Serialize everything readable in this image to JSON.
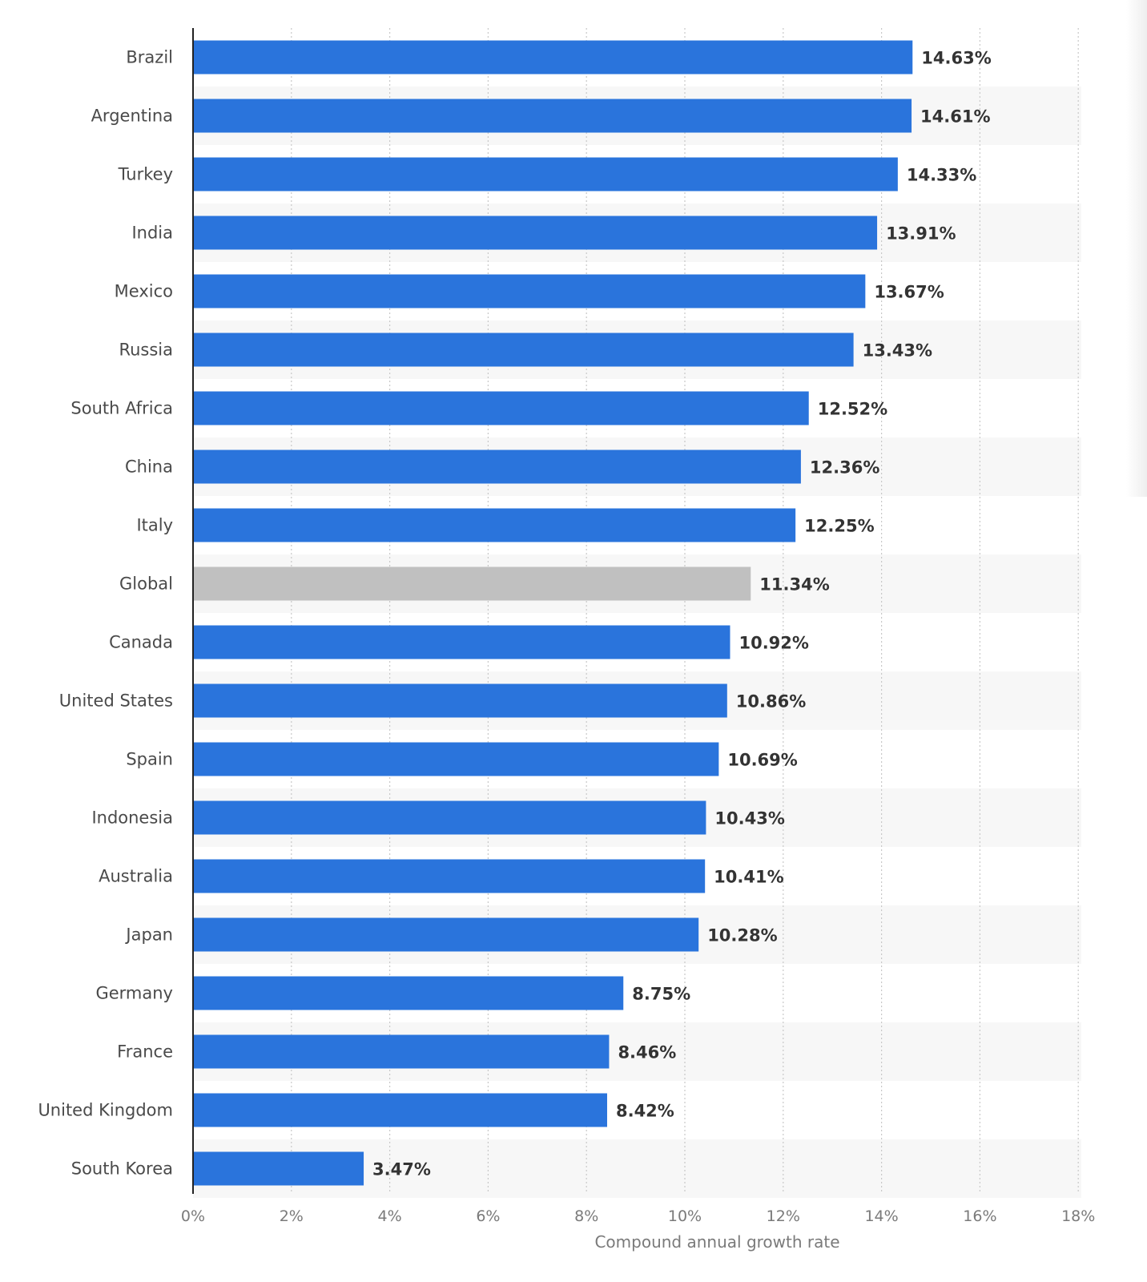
{
  "chart_data": {
    "type": "bar",
    "orientation": "horizontal",
    "categories": [
      "Brazil",
      "Argentina",
      "Turkey",
      "India",
      "Mexico",
      "Russia",
      "South Africa",
      "China",
      "Italy",
      "Global",
      "Canada",
      "United States",
      "Spain",
      "Indonesia",
      "Australia",
      "Japan",
      "Germany",
      "France",
      "United Kingdom",
      "South Korea"
    ],
    "values": [
      14.63,
      14.61,
      14.33,
      13.91,
      13.67,
      13.43,
      12.52,
      12.36,
      12.25,
      11.34,
      10.92,
      10.86,
      10.69,
      10.43,
      10.41,
      10.28,
      8.75,
      8.46,
      8.42,
      3.47
    ],
    "value_labels": [
      "14.63%",
      "14.61%",
      "14.33%",
      "13.91%",
      "13.67%",
      "13.43%",
      "12.52%",
      "12.36%",
      "12.25%",
      "11.34%",
      "10.92%",
      "10.86%",
      "10.69%",
      "10.43%",
      "10.41%",
      "10.28%",
      "8.75%",
      "8.46%",
      "8.42%",
      "3.47%"
    ],
    "highlight_category": "Global",
    "x_ticks": [
      0,
      2,
      4,
      6,
      8,
      10,
      12,
      14,
      16,
      18
    ],
    "x_tick_labels": [
      "0%",
      "2%",
      "4%",
      "6%",
      "8%",
      "10%",
      "12%",
      "14%",
      "16%",
      "18%"
    ],
    "xlim": [
      0,
      18
    ],
    "xlabel": "Compound annual growth rate",
    "ylabel": "",
    "title": "",
    "grid": "vertical dotted",
    "legend": "none",
    "colors": {
      "bar": "#2a74dc",
      "highlight_bar": "#c0c0c0",
      "band": "#f7f7f7",
      "grid": "#c8c8c8",
      "axis": "#222222",
      "category_text": "#4a4a4a",
      "value_text": "#333333",
      "tick_text": "#7a7a7a"
    }
  }
}
